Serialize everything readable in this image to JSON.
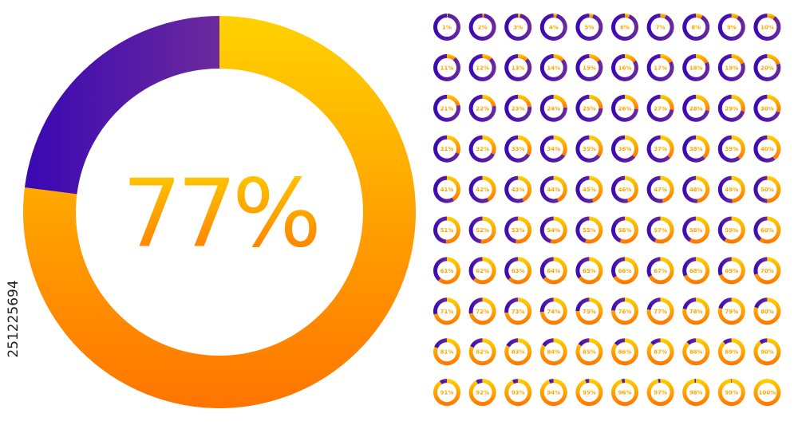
{
  "chart_data": [
    {
      "type": "donut",
      "values": [
        77
      ],
      "value_labels": [
        "77%"
      ],
      "colors": [
        "#ffd200",
        "#ff7400"
      ],
      "rest_colors": [
        "#3a08b4",
        "#6b2a9c"
      ]
    },
    {
      "type": "donut-grid",
      "values": [
        1,
        2,
        3,
        4,
        5,
        6,
        7,
        8,
        9,
        10,
        11,
        12,
        13,
        14,
        15,
        16,
        17,
        18,
        19,
        20,
        21,
        22,
        23,
        24,
        25,
        26,
        27,
        28,
        29,
        30,
        31,
        32,
        33,
        34,
        35,
        36,
        37,
        38,
        39,
        40,
        41,
        42,
        43,
        44,
        45,
        46,
        47,
        48,
        49,
        50,
        51,
        52,
        53,
        54,
        55,
        56,
        57,
        58,
        59,
        60,
        61,
        62,
        63,
        64,
        65,
        66,
        67,
        68,
        69,
        70,
        71,
        72,
        73,
        74,
        75,
        76,
        77,
        78,
        79,
        80,
        81,
        82,
        83,
        84,
        85,
        86,
        87,
        88,
        89,
        90,
        91,
        92,
        93,
        94,
        95,
        96,
        97,
        98,
        99,
        100
      ],
      "value_labels": [
        "1%",
        "2%",
        "3%",
        "4%",
        "5%",
        "6%",
        "7%",
        "8%",
        "9%",
        "10%",
        "11%",
        "12%",
        "13%",
        "14%",
        "15%",
        "16%",
        "17%",
        "18%",
        "19%",
        "20%",
        "21%",
        "22%",
        "23%",
        "24%",
        "25%",
        "26%",
        "27%",
        "28%",
        "29%",
        "30%",
        "31%",
        "32%",
        "33%",
        "34%",
        "35%",
        "36%",
        "37%",
        "38%",
        "39%",
        "40%",
        "41%",
        "42%",
        "43%",
        "44%",
        "45%",
        "46%",
        "47%",
        "48%",
        "49%",
        "50%",
        "51%",
        "52%",
        "53%",
        "54%",
        "55%",
        "56%",
        "57%",
        "58%",
        "59%",
        "60%",
        "61%",
        "62%",
        "63%",
        "64%",
        "65%",
        "66%",
        "67%",
        "68%",
        "69%",
        "70%",
        "71%",
        "72%",
        "73%",
        "74%",
        "75%",
        "76%",
        "77%",
        "78%",
        "79%",
        "80%",
        "81%",
        "82%",
        "83%",
        "84%",
        "85%",
        "86%",
        "87%",
        "88%",
        "89%",
        "90%",
        "91%",
        "92%",
        "93%",
        "94%",
        "95%",
        "96%",
        "97%",
        "98%",
        "99%",
        "100%"
      ],
      "colors": [
        "#ffd200",
        "#ff7400"
      ],
      "rest_colors": [
        "#3a08b4",
        "#6b2a9c"
      ]
    }
  ],
  "image_id": "251225694"
}
